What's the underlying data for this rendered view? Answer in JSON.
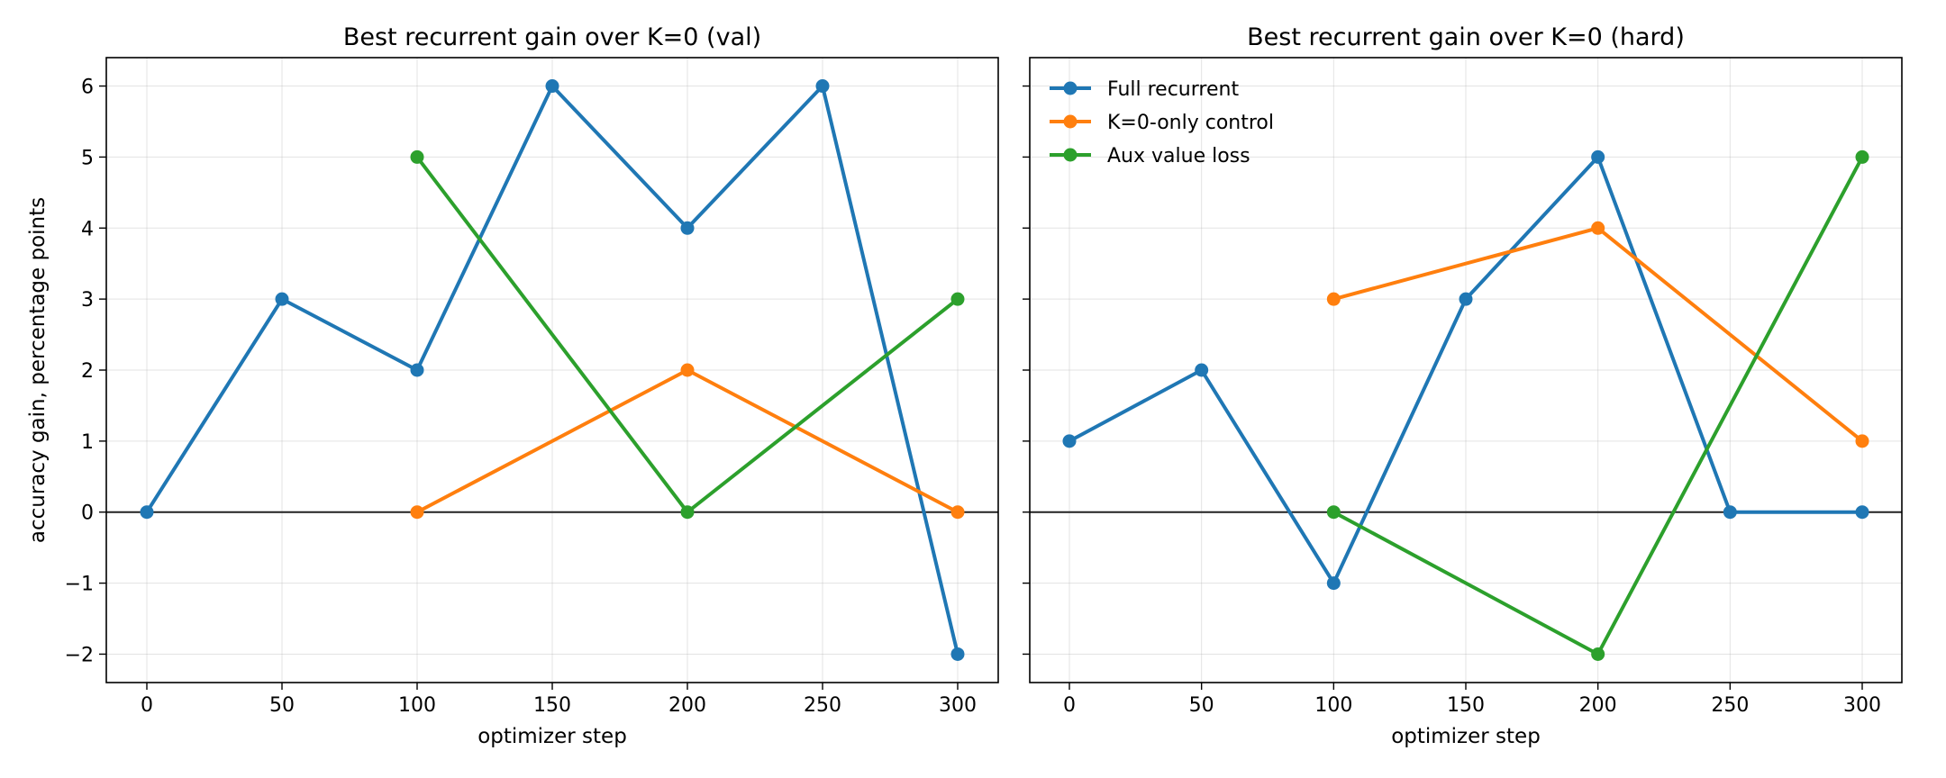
{
  "chart_data": [
    {
      "type": "line",
      "title": "Best recurrent gain over K=0 (val)",
      "xlabel": "optimizer step",
      "ylabel": "accuracy gain, percentage points",
      "xlim": [
        -15,
        315
      ],
      "ylim": [
        -2.4,
        6.4
      ],
      "xticks": [
        0,
        50,
        100,
        150,
        200,
        250,
        300
      ],
      "yticks": [
        -2,
        -1,
        0,
        1,
        2,
        3,
        4,
        5,
        6
      ],
      "grid": true,
      "zero_line": true,
      "legend": null,
      "series": [
        {
          "name": "Full recurrent",
          "color": "#1f77b4",
          "x": [
            0,
            50,
            100,
            150,
            200,
            250,
            300
          ],
          "y": [
            0,
            3,
            2,
            6,
            4,
            6,
            -2
          ]
        },
        {
          "name": "K=0-only control",
          "color": "#ff7f0e",
          "x": [
            100,
            200,
            300
          ],
          "y": [
            0,
            2,
            0
          ]
        },
        {
          "name": "Aux value loss",
          "color": "#2ca02c",
          "x": [
            100,
            200,
            300
          ],
          "y": [
            5,
            0,
            3
          ]
        }
      ]
    },
    {
      "type": "line",
      "title": "Best recurrent gain over K=0 (hard)",
      "xlabel": "optimizer step",
      "ylabel": "",
      "xlim": [
        -15,
        315
      ],
      "ylim": [
        -2.4,
        6.4
      ],
      "xticks": [
        0,
        50,
        100,
        150,
        200,
        250,
        300
      ],
      "yticks": [
        -2,
        -1,
        0,
        1,
        2,
        3,
        4,
        5,
        6
      ],
      "grid": true,
      "zero_line": true,
      "legend": "upper-left",
      "series": [
        {
          "name": "Full recurrent",
          "color": "#1f77b4",
          "x": [
            0,
            50,
            100,
            150,
            200,
            250,
            300
          ],
          "y": [
            1,
            2,
            -1,
            3,
            5,
            0,
            0
          ]
        },
        {
          "name": "K=0-only control",
          "color": "#ff7f0e",
          "x": [
            100,
            200,
            300
          ],
          "y": [
            3,
            4,
            1
          ]
        },
        {
          "name": "Aux value loss",
          "color": "#2ca02c",
          "x": [
            100,
            200,
            300
          ],
          "y": [
            0,
            -2,
            5
          ]
        }
      ]
    }
  ]
}
